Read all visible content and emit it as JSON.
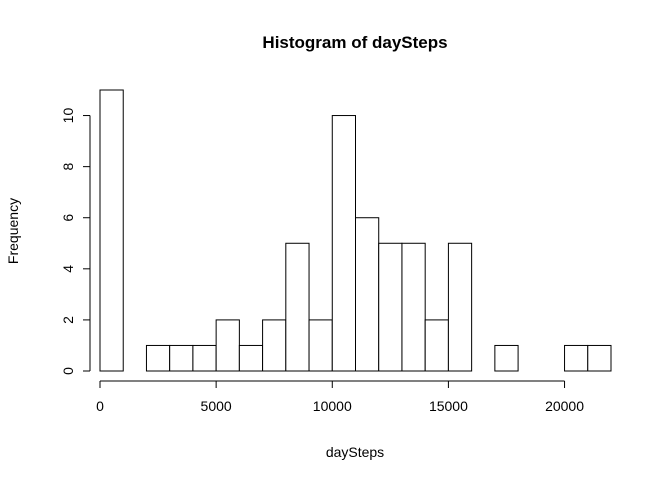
{
  "chart_data": {
    "type": "bar",
    "title": "Histogram of daySteps",
    "xlabel": "daySteps",
    "ylabel": "Frequency",
    "bin_width": 1000,
    "bins": [
      {
        "start": 0,
        "end": 1000,
        "count": 11
      },
      {
        "start": 1000,
        "end": 2000,
        "count": 0
      },
      {
        "start": 2000,
        "end": 3000,
        "count": 1
      },
      {
        "start": 3000,
        "end": 4000,
        "count": 1
      },
      {
        "start": 4000,
        "end": 5000,
        "count": 1
      },
      {
        "start": 5000,
        "end": 6000,
        "count": 2
      },
      {
        "start": 6000,
        "end": 7000,
        "count": 1
      },
      {
        "start": 7000,
        "end": 8000,
        "count": 2
      },
      {
        "start": 8000,
        "end": 9000,
        "count": 5
      },
      {
        "start": 9000,
        "end": 10000,
        "count": 2
      },
      {
        "start": 10000,
        "end": 11000,
        "count": 10
      },
      {
        "start": 11000,
        "end": 12000,
        "count": 6
      },
      {
        "start": 12000,
        "end": 13000,
        "count": 5
      },
      {
        "start": 13000,
        "end": 14000,
        "count": 5
      },
      {
        "start": 14000,
        "end": 15000,
        "count": 2
      },
      {
        "start": 15000,
        "end": 16000,
        "count": 5
      },
      {
        "start": 16000,
        "end": 17000,
        "count": 0
      },
      {
        "start": 17000,
        "end": 18000,
        "count": 1
      },
      {
        "start": 18000,
        "end": 19000,
        "count": 0
      },
      {
        "start": 19000,
        "end": 20000,
        "count": 0
      },
      {
        "start": 20000,
        "end": 21000,
        "count": 1
      },
      {
        "start": 21000,
        "end": 22000,
        "count": 1
      }
    ],
    "xlim": [
      0,
      22000
    ],
    "ylim": [
      0,
      11
    ],
    "x_ticks": [
      0,
      5000,
      10000,
      15000,
      20000
    ],
    "y_ticks": [
      0,
      2,
      4,
      6,
      8,
      10
    ],
    "grid": false,
    "legend": false
  }
}
